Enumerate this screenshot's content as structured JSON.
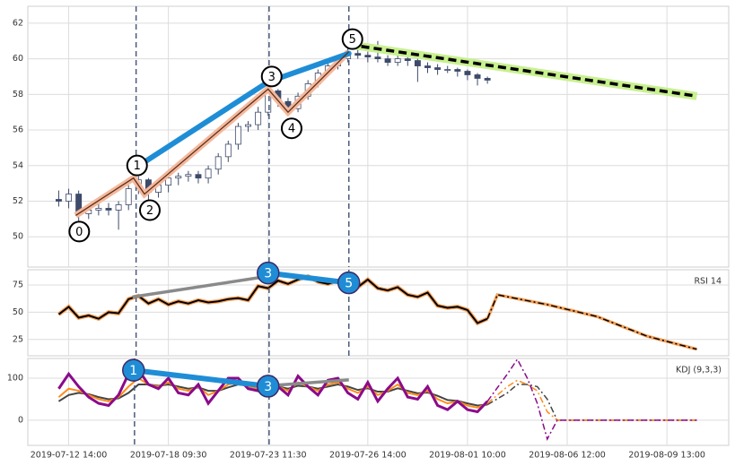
{
  "chart_data": [
    {
      "type": "candlestick",
      "xlim": [
        -4.1,
        66.2
      ],
      "ylim": [
        48.3,
        62.95
      ],
      "yticks": [
        50,
        52,
        54,
        56,
        58,
        60,
        62
      ],
      "grid": true,
      "x": [
        -1,
        0,
        1,
        2,
        3,
        4,
        5,
        6,
        7,
        8,
        9,
        10,
        11,
        12,
        13,
        14,
        15,
        16,
        17,
        18,
        19,
        20,
        21,
        22,
        23,
        24,
        25,
        26,
        27,
        28,
        29,
        30,
        31,
        32,
        33,
        34,
        35,
        36,
        37,
        38,
        39,
        40,
        41,
        42
      ],
      "open": [
        52.1,
        52.0,
        52.4,
        51.3,
        51.5,
        51.6,
        51.5,
        51.8,
        52.7,
        53.2,
        52.5,
        52.9,
        53.3,
        53.4,
        53.5,
        53.3,
        53.8,
        54.5,
        55.2,
        56.2,
        56.3,
        57.0,
        58.2,
        57.6,
        57.2,
        57.9,
        58.6,
        59.2,
        59.6,
        60.0,
        60.3,
        60.2,
        60.1,
        60.0,
        59.8,
        60.0,
        59.9,
        59.6,
        59.5,
        59.4,
        59.4,
        59.3,
        59.1,
        58.9
      ],
      "high": [
        52.6,
        52.7,
        52.6,
        51.8,
        51.9,
        51.9,
        52.0,
        52.9,
        53.4,
        53.3,
        53.1,
        53.5,
        53.6,
        53.7,
        53.7,
        54.0,
        54.7,
        55.4,
        56.4,
        56.5,
        57.3,
        58.5,
        58.3,
        57.8,
        58.1,
        58.8,
        59.4,
        59.8,
        60.2,
        60.6,
        60.5,
        60.4,
        61.0,
        60.2,
        60.2,
        60.1,
        60.0,
        59.8,
        59.7,
        59.6,
        59.5,
        59.4,
        59.2,
        59.0
      ],
      "low": [
        51.7,
        51.6,
        50.9,
        51.0,
        51.2,
        51.2,
        50.4,
        51.5,
        52.4,
        52.0,
        52.2,
        52.5,
        52.9,
        53.1,
        53.0,
        53.0,
        53.5,
        54.2,
        54.9,
        55.9,
        56.0,
        56.8,
        57.3,
        56.9,
        57.0,
        57.7,
        58.4,
        59.0,
        59.4,
        59.8,
        60.0,
        59.8,
        59.8,
        59.6,
        59.6,
        59.6,
        58.7,
        59.2,
        59.1,
        59.2,
        59.0,
        58.8,
        58.5,
        58.6
      ],
      "close": [
        52.0,
        52.4,
        51.3,
        51.5,
        51.6,
        51.5,
        51.8,
        52.7,
        53.2,
        52.5,
        52.9,
        53.3,
        53.4,
        53.5,
        53.3,
        53.8,
        54.5,
        55.2,
        56.2,
        56.3,
        57.0,
        58.2,
        57.6,
        57.2,
        57.9,
        58.6,
        59.2,
        59.6,
        60.0,
        60.3,
        60.2,
        60.1,
        60.0,
        59.8,
        60.0,
        59.9,
        59.6,
        59.5,
        59.4,
        59.4,
        59.3,
        59.1,
        58.9,
        58.8
      ],
      "up_color": "#ffffff",
      "down_color": "#3d4a6b",
      "edge_color": "#3d4a6b",
      "waves": {
        "x": [
          0.7,
          6.5,
          7.6,
          20,
          22,
          28.1
        ],
        "values": [
          51.2,
          53.3,
          52.4,
          58.3,
          57.0,
          60.4
        ],
        "labels": [
          "0",
          "1",
          "2",
          "3",
          "4",
          "5"
        ],
        "color": "#5a2d1a",
        "edge_color": "#f4b89c"
      },
      "impulse": {
        "x": [
          6.5,
          20,
          28.1
        ],
        "values": [
          53.8,
          58.7,
          60.3
        ],
        "color": "#1f8dd6"
      },
      "forecast": [
        {
          "x": [
            28.1,
            63
          ],
          "values": [
            60.8,
            57.9
          ],
          "color": "#000000",
          "edge_color": "#c8f08f",
          "style": "dashed"
        }
      ],
      "markers": [
        6.76,
        20.1,
        28.1
      ]
    },
    {
      "type": "line",
      "label": "RSI 14",
      "xlim": [
        -4.1,
        66.2
      ],
      "ylim": [
        10,
        89
      ],
      "yticks": [
        25,
        50,
        75
      ],
      "grid": true,
      "x": [
        -1,
        0,
        1,
        2,
        3,
        4,
        5,
        6,
        7,
        8,
        9,
        10,
        11,
        12,
        13,
        14,
        15,
        16,
        17,
        18,
        19,
        20,
        21,
        22,
        23,
        24,
        25,
        26,
        27,
        28,
        29,
        30,
        31,
        32,
        33,
        34,
        35,
        36,
        37,
        38,
        39,
        40,
        41,
        42
      ],
      "series": [
        {
          "color": "#000000",
          "edge_color": "#f5a15a",
          "values": [
            48,
            55,
            45,
            47,
            44,
            50,
            49,
            62,
            65,
            58,
            62,
            57,
            60,
            58,
            61,
            59,
            60,
            62,
            63,
            61,
            74,
            72,
            79,
            76,
            80,
            83,
            78,
            76,
            79,
            75,
            73,
            80,
            72,
            70,
            73,
            66,
            64,
            68,
            56,
            54,
            55,
            52,
            40,
            44
          ]
        }
      ],
      "forecast": [
        {
          "x": [
            42,
            43,
            48,
            53,
            58,
            63
          ],
          "values": [
            44,
            66,
            57,
            46,
            28,
            16
          ],
          "color": "#000000",
          "edge_color": "#f5a15a",
          "style": "dashdot"
        }
      ],
      "pivots": {
        "x": [
          20,
          28.1
        ],
        "values": [
          86,
          77
        ],
        "labels": [
          "3",
          "5"
        ],
        "color": "#1f8dd6"
      },
      "divergence": {
        "x": [
          6.4,
          20
        ],
        "values": [
          64,
          83
        ],
        "color": "#8a8a8a"
      },
      "markers": [
        6.76,
        20.1,
        28.1
      ]
    },
    {
      "type": "line",
      "label": "KDJ (9,3,3)",
      "xlim": [
        -4.1,
        66.2
      ],
      "ylim": [
        -60,
        147
      ],
      "yticks": [
        0,
        100
      ],
      "grid": true,
      "xticks": [
        {
          "value": 0,
          "label": "2019-07-12 14:00"
        },
        {
          "value": 10,
          "label": "2019-07-18 09:30"
        },
        {
          "value": 20,
          "label": "2019-07-23 11:30"
        },
        {
          "value": 30,
          "label": "2019-07-26 14:00"
        },
        {
          "value": 40,
          "label": "2019-08-01 10:00"
        },
        {
          "value": 50,
          "label": "2019-08-06 12:00"
        },
        {
          "value": 60,
          "label": "2019-08-09 13:00"
        }
      ],
      "x": [
        -1,
        0,
        1,
        2,
        3,
        4,
        5,
        6,
        7,
        8,
        9,
        10,
        11,
        12,
        13,
        14,
        15,
        16,
        17,
        18,
        19,
        20,
        21,
        22,
        23,
        24,
        25,
        26,
        27,
        28,
        29,
        30,
        31,
        32,
        33,
        34,
        35,
        36,
        37,
        38,
        39,
        40,
        41,
        42
      ],
      "series": [
        {
          "color": "#444444",
          "values": [
            45,
            60,
            65,
            62,
            55,
            50,
            52,
            65,
            85,
            85,
            82,
            85,
            80,
            75,
            78,
            70,
            70,
            78,
            85,
            82,
            78,
            82,
            80,
            75,
            82,
            80,
            75,
            80,
            85,
            80,
            72,
            76,
            68,
            68,
            76,
            70,
            64,
            66,
            58,
            48,
            46,
            40,
            35,
            37
          ]
        },
        {
          "color": "#ff8c1a",
          "values": [
            55,
            75,
            70,
            60,
            50,
            45,
            55,
            80,
            100,
            85,
            80,
            90,
            75,
            70,
            80,
            60,
            70,
            85,
            90,
            80,
            75,
            85,
            80,
            70,
            90,
            80,
            70,
            85,
            90,
            75,
            65,
            80,
            60,
            70,
            85,
            65,
            60,
            70,
            50,
            40,
            45,
            35,
            30,
            40
          ]
        },
        {
          "color": "#8b0a8b",
          "values": [
            75,
            110,
            80,
            55,
            40,
            35,
            60,
            110,
            120,
            85,
            75,
            100,
            65,
            60,
            85,
            40,
            70,
            100,
            100,
            75,
            70,
            90,
            80,
            60,
            105,
            80,
            60,
            95,
            100,
            65,
            50,
            90,
            45,
            75,
            100,
            55,
            50,
            80,
            35,
            25,
            45,
            25,
            20,
            45
          ]
        }
      ],
      "forecast": [
        {
          "x": [
            42,
            44,
            45,
            46,
            47,
            48,
            49,
            63
          ],
          "values": [
            37,
            65,
            85,
            85,
            80,
            50,
            0,
            0
          ],
          "color": "#444444",
          "style": "dashdot"
        },
        {
          "x": [
            42,
            44,
            45,
            46,
            47,
            48,
            49,
            63
          ],
          "values": [
            40,
            80,
            95,
            85,
            70,
            20,
            0,
            0
          ],
          "color": "#ff8c1a",
          "style": "dashdot"
        },
        {
          "x": [
            42,
            44,
            45,
            46,
            47,
            48,
            49,
            63
          ],
          "values": [
            45,
            110,
            145,
            100,
            40,
            -45,
            0,
            0
          ],
          "color": "#8b0a8b",
          "style": "dashdot"
        }
      ],
      "pivots": {
        "x": [
          6.5,
          20
        ],
        "values": [
          119,
          81
        ],
        "labels": [
          "1",
          "3"
        ],
        "color": "#1f8dd6"
      },
      "divergence": {
        "x": [
          20,
          28.1
        ],
        "values": [
          82,
          96
        ],
        "color": "#8a8a8a"
      },
      "markers": [
        6.6,
        20.1
      ]
    }
  ]
}
